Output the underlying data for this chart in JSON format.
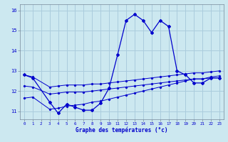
{
  "xlabel": "Graphe des températures (°c)",
  "bg_color": "#cce8f0",
  "grid_color": "#aaccdd",
  "line_color": "#0000cc",
  "hours": [
    0,
    1,
    2,
    3,
    4,
    5,
    6,
    7,
    8,
    9,
    10,
    11,
    12,
    13,
    14,
    15,
    16,
    17,
    18,
    19,
    20,
    21,
    22,
    23
  ],
  "temp_main": [
    12.8,
    12.65,
    null,
    11.45,
    10.9,
    11.35,
    11.2,
    11.05,
    11.05,
    11.4,
    12.15,
    13.8,
    15.5,
    15.8,
    15.5,
    14.9,
    15.5,
    15.2,
    13.0,
    12.8,
    12.4,
    12.4,
    12.65,
    12.65
  ],
  "temp_line_top": [
    12.8,
    12.7,
    null,
    12.2,
    12.25,
    12.3,
    12.3,
    12.3,
    12.35,
    12.35,
    12.4,
    12.45,
    12.5,
    12.55,
    12.6,
    12.65,
    12.7,
    12.75,
    12.8,
    12.85,
    12.9,
    12.9,
    12.95,
    13.0
  ],
  "temp_line_mid": [
    12.25,
    12.2,
    null,
    11.85,
    11.9,
    11.95,
    11.95,
    11.95,
    12.0,
    12.05,
    12.1,
    12.15,
    12.2,
    12.25,
    12.3,
    12.35,
    12.4,
    12.45,
    12.5,
    12.55,
    12.6,
    12.6,
    12.65,
    12.65
  ],
  "temp_line_bot": [
    11.65,
    11.7,
    null,
    11.1,
    11.15,
    11.25,
    11.3,
    11.35,
    11.45,
    11.5,
    11.6,
    11.7,
    11.8,
    11.9,
    12.0,
    12.1,
    12.2,
    12.3,
    12.4,
    12.5,
    12.6,
    12.6,
    12.7,
    12.75
  ],
  "ylim_min": 10.6,
  "ylim_max": 16.3,
  "ytick_min": 11,
  "ytick_max": 16,
  "ytick_step": 1
}
